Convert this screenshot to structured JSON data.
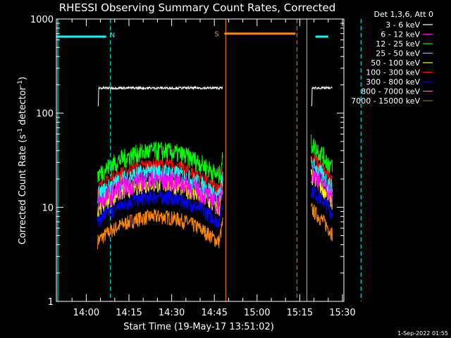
{
  "chart_data": {
    "type": "line",
    "title": "RHESSI Observing Summary Count Rates, Corrected",
    "xlabel": "Start Time (19-May-17 13:51:02)",
    "ylabel_main": "Corrected Count Rate (s",
    "ylabel_sup1": "-1",
    "ylabel_mid": " detector",
    "ylabel_sup2": "-1",
    "ylabel_end": ")",
    "yscale": "log",
    "ylim": [
      1,
      1000
    ],
    "xlim_minutes_after_start": [
      -1.5,
      99.5
    ],
    "x_ticks": [
      "14:00",
      "14:15",
      "14:30",
      "14:45",
      "15:00",
      "15:15",
      "15:30"
    ],
    "y_ticks": [
      "1",
      "10",
      "100",
      "1000"
    ],
    "legend_header": "Det 1,3,6, Att 0",
    "legend_position": "top-right, outside plot",
    "series": [
      {
        "name": "3 - 6 keV",
        "color": "#ffffff",
        "level": 185,
        "flat": true
      },
      {
        "name": "6 - 12 keV",
        "color": "#ff00ff",
        "level": 20
      },
      {
        "name": "12 - 25 keV",
        "color": "#00ff00",
        "level": 40
      },
      {
        "name": "25 - 50 keV",
        "color": "#00ffff",
        "level": 24
      },
      {
        "name": "50 - 100 keV",
        "color": "#ffff00",
        "level": 18
      },
      {
        "name": "100 - 300 keV",
        "color": "#ff0000",
        "level": 28
      },
      {
        "name": "300 - 800 keV",
        "color": "#0000ff",
        "level": 13
      },
      {
        "name": "800 - 7000 keV",
        "color": "#ff8800",
        "level": 8
      },
      {
        "name": "7000 - 15000 keV",
        "color": "#808000",
        "level": 0
      }
    ],
    "data_windows_minutes": [
      [
        13,
        57
      ],
      [
        88,
        95.5
      ]
    ],
    "night_bars": [
      {
        "label": "N",
        "start": -1.5,
        "end": 16,
        "color": "#00ffff"
      },
      {
        "label": "",
        "start": 89.5,
        "end": 94,
        "color": "#00ffff"
      }
    ],
    "saa_bars": [
      {
        "label": "S",
        "start": 57.5,
        "end": 82.5,
        "color": "#ff8800"
      }
    ],
    "vlines": [
      {
        "x": -1,
        "color": "#00ffff",
        "dashed": false
      },
      {
        "x": 17.5,
        "color": "#00ffff",
        "dashed": true
      },
      {
        "x": 58,
        "color": "#ff8800",
        "dashed": false
      },
      {
        "x": 83,
        "color": "#ff8800",
        "dashed": true
      },
      {
        "x": 86.5,
        "color": "#00ffff",
        "dashed": false
      },
      {
        "x": 105.5,
        "color": "#00ffff",
        "dashed": true
      }
    ]
  },
  "footer_date": "1-Sep-2022 01:55"
}
